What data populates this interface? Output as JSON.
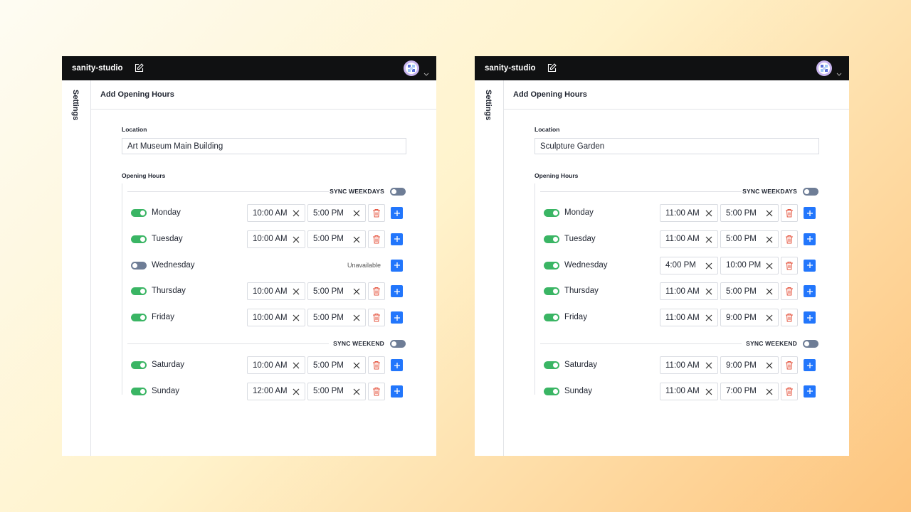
{
  "panels": [
    {
      "header": {
        "brand": "sanity-studio"
      },
      "sidebar": {
        "label": "Settings"
      },
      "form": {
        "title": "Add Opening Hours",
        "location_label": "Location",
        "location_value": "Art Museum Main Building",
        "hours_label": "Opening Hours",
        "groups": [
          {
            "sync_label": "SYNC WEEKDAYS",
            "sync_on": false,
            "days": [
              {
                "day": "Monday",
                "enabled": true,
                "open": "10:00 AM",
                "close": "5:00 PM"
              },
              {
                "day": "Tuesday",
                "enabled": true,
                "open": "10:00 AM",
                "close": "5:00 PM"
              },
              {
                "day": "Wednesday",
                "enabled": false,
                "status": "Unavailable"
              },
              {
                "day": "Thursday",
                "enabled": true,
                "open": "10:00 AM",
                "close": "5:00 PM"
              },
              {
                "day": "Friday",
                "enabled": true,
                "open": "10:00 AM",
                "close": "5:00 PM"
              }
            ]
          },
          {
            "sync_label": "SYNC WEEKEND",
            "sync_on": false,
            "days": [
              {
                "day": "Saturday",
                "enabled": true,
                "open": "10:00 AM",
                "close": "5:00 PM"
              },
              {
                "day": "Sunday",
                "enabled": true,
                "open": "12:00 AM",
                "close": "5:00 PM"
              }
            ]
          }
        ]
      }
    },
    {
      "header": {
        "brand": "sanity-studio"
      },
      "sidebar": {
        "label": "Settings"
      },
      "form": {
        "title": "Add Opening Hours",
        "location_label": "Location",
        "location_value": "Sculpture Garden",
        "hours_label": "Opening Hours",
        "groups": [
          {
            "sync_label": "SYNC WEEKDAYS",
            "sync_on": false,
            "days": [
              {
                "day": "Monday",
                "enabled": true,
                "open": "11:00 AM",
                "close": "5:00 PM"
              },
              {
                "day": "Tuesday",
                "enabled": true,
                "open": "11:00 AM",
                "close": "5:00 PM"
              },
              {
                "day": "Wednesday",
                "enabled": true,
                "open": "4:00 PM",
                "close": "10:00 PM"
              },
              {
                "day": "Thursday",
                "enabled": true,
                "open": "11:00 AM",
                "close": "5:00 PM"
              },
              {
                "day": "Friday",
                "enabled": true,
                "open": "11:00 AM",
                "close": "9:00 PM"
              }
            ]
          },
          {
            "sync_label": "SYNC WEEKEND",
            "sync_on": false,
            "days": [
              {
                "day": "Saturday",
                "enabled": true,
                "open": "11:00 AM",
                "close": "9:00 PM"
              },
              {
                "day": "Sunday",
                "enabled": true,
                "open": "11:00 AM",
                "close": "7:00 PM"
              }
            ]
          }
        ]
      }
    }
  ]
}
